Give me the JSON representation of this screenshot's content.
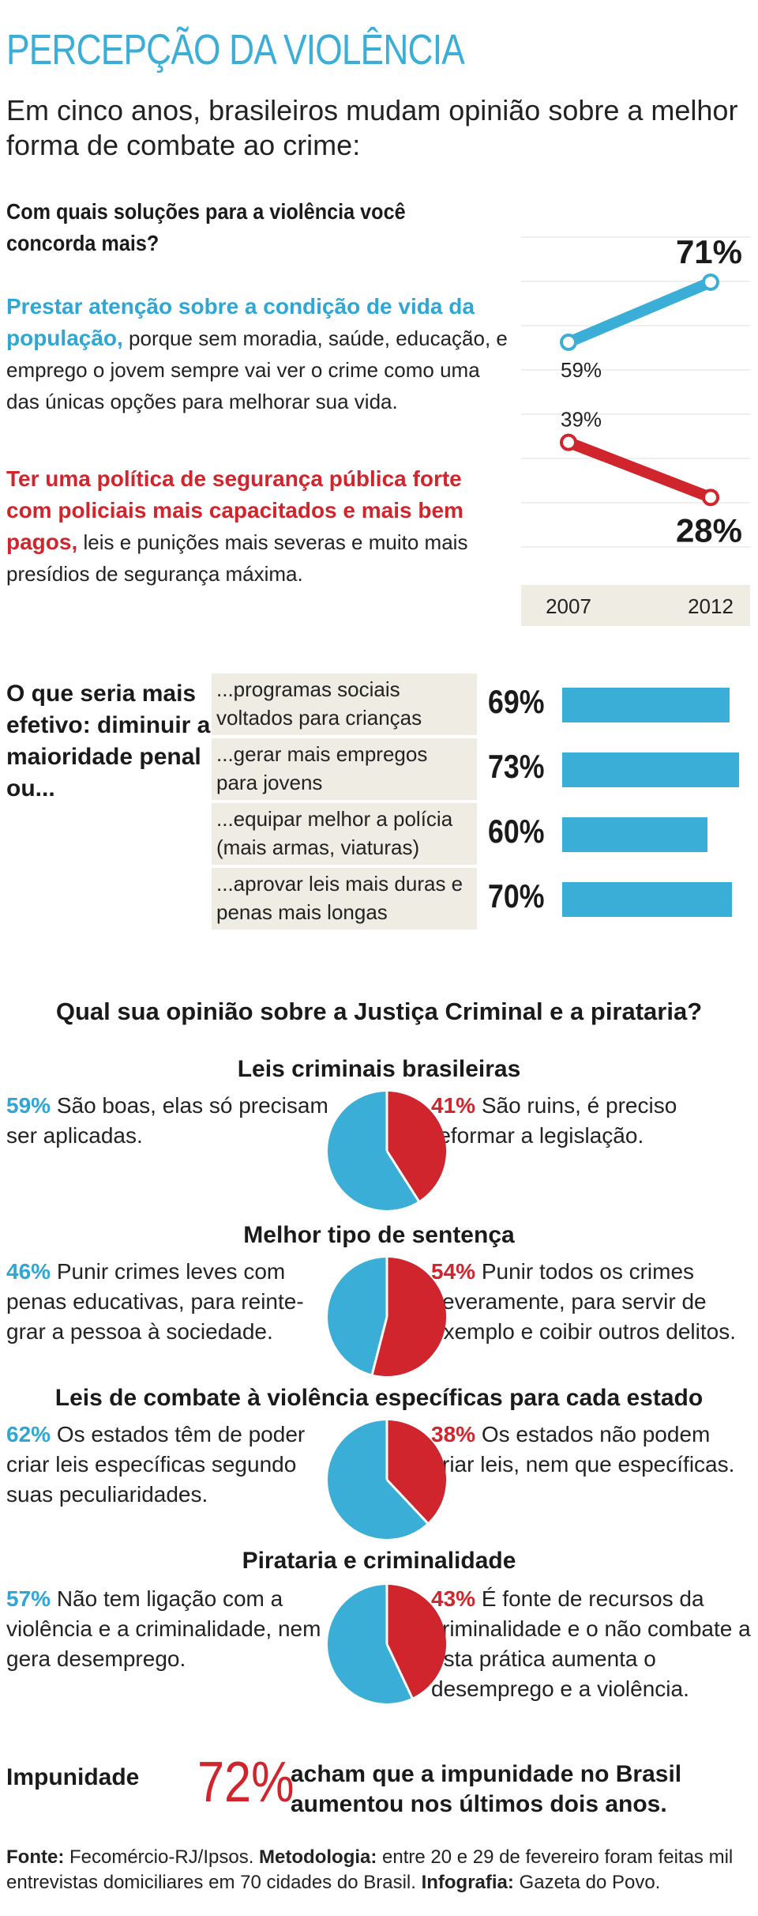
{
  "title": "PERCEPÇÃO DA VIOLÊNCIA",
  "subtitle": "Em cinco anos, brasileiros mudam opinião sobre a melhor forma de combate ao crime:",
  "trend": {
    "question": "Com quais soluções para a violência você concorda mais?",
    "option1_strong": "Prestar atenção sobre a condição de vida da população,",
    "option1_rest": " porque sem moradia, saúde, educação, e emprego o jovem sempre vai ver o crime como uma das únicas opções para melhorar sua vida.",
    "option2_strong": "Ter uma política de segurança pública forte com policiais mais capacitados e mais bem pagos,",
    "option2_rest": " leis e punições mais severas e muito mais presídios de segurança máxima.",
    "colors": {
      "blue": "#3aaed6",
      "red": "#d0252c"
    }
  },
  "chart_data": [
    {
      "type": "line",
      "title": "",
      "x": [
        "2007",
        "2012"
      ],
      "series": [
        {
          "values": [
            59,
            71
          ],
          "labels": [
            "59%",
            "71%"
          ],
          "color": "#3aaed6"
        },
        {
          "values": [
            39,
            28
          ],
          "labels": [
            "39%",
            "28%"
          ],
          "color": "#d0252c"
        }
      ],
      "ylim": [
        20,
        80
      ]
    },
    {
      "type": "bar",
      "title": "O que seria mais efetivo: diminuir a maioridade penal ou...",
      "categories": [
        "...programas sociais voltados para crianças",
        "...gerar mais empregos para jovens",
        "...equipar melhor a polícia (mais armas, viaturas)",
        "...aprovar leis mais duras e penas mais longas"
      ],
      "values": [
        69,
        73,
        60,
        70
      ],
      "labels": [
        "69%",
        "73%",
        "60%",
        "70%"
      ],
      "color": "#3aaed6"
    },
    {
      "type": "pie",
      "title": "Leis criminais brasileiras",
      "values": [
        59,
        41
      ],
      "labels": [
        "59%",
        "41%"
      ],
      "texts": [
        "São boas, elas só precisam ser aplicadas.",
        "São ruins, é preciso reformar a legislação."
      ]
    },
    {
      "type": "pie",
      "title": "Melhor tipo de sentença",
      "values": [
        46,
        54
      ],
      "labels": [
        "46%",
        "54%"
      ],
      "texts": [
        "Punir crimes leves com penas educativas, para reinte-grar a pessoa à sociedade.",
        "Punir todos os crimes severamente, para servir de exemplo e coibir outros delitos."
      ]
    },
    {
      "type": "pie",
      "title": "Leis de combate à violência específicas para cada estado",
      "values": [
        62,
        38
      ],
      "labels": [
        "62%",
        "38%"
      ],
      "texts": [
        "Os estados têm de poder criar leis específicas segundo suas peculiaridades.",
        "Os estados não podem criar leis, nem que específicas."
      ]
    },
    {
      "type": "pie",
      "title": "Pirataria e criminalidade",
      "values": [
        57,
        43
      ],
      "labels": [
        "57%",
        "43%"
      ],
      "texts": [
        "Não tem ligação com a violência e a criminalidade, nem gera desemprego.",
        "É fonte de recursos da criminalidade e o não combate a esta prática aumenta o desemprego e a violência."
      ]
    }
  ],
  "bars_question": "O que seria mais efetivo: diminuir a maioridade penal ou...",
  "pies_question": "Qual sua opinião sobre a Justiça Criminal e a pirataria?",
  "impunity": {
    "label": "Impunidade",
    "pct": "72%",
    "text": "acham que a impunidade no Brasil aumentou nos últimos dois anos."
  },
  "source": {
    "fonte_label": "Fonte:",
    "fonte": " Fecomércio-RJ/Ipsos. ",
    "metodologia_label": "Metodologia:",
    "metodologia": " entre 20 e 29 de fevereiro foram feitas mil entrevistas domiciliares em 70 cidades do Brasil. ",
    "infografia_label": "Infografia:",
    "infografia": " Gazeta do Povo."
  }
}
